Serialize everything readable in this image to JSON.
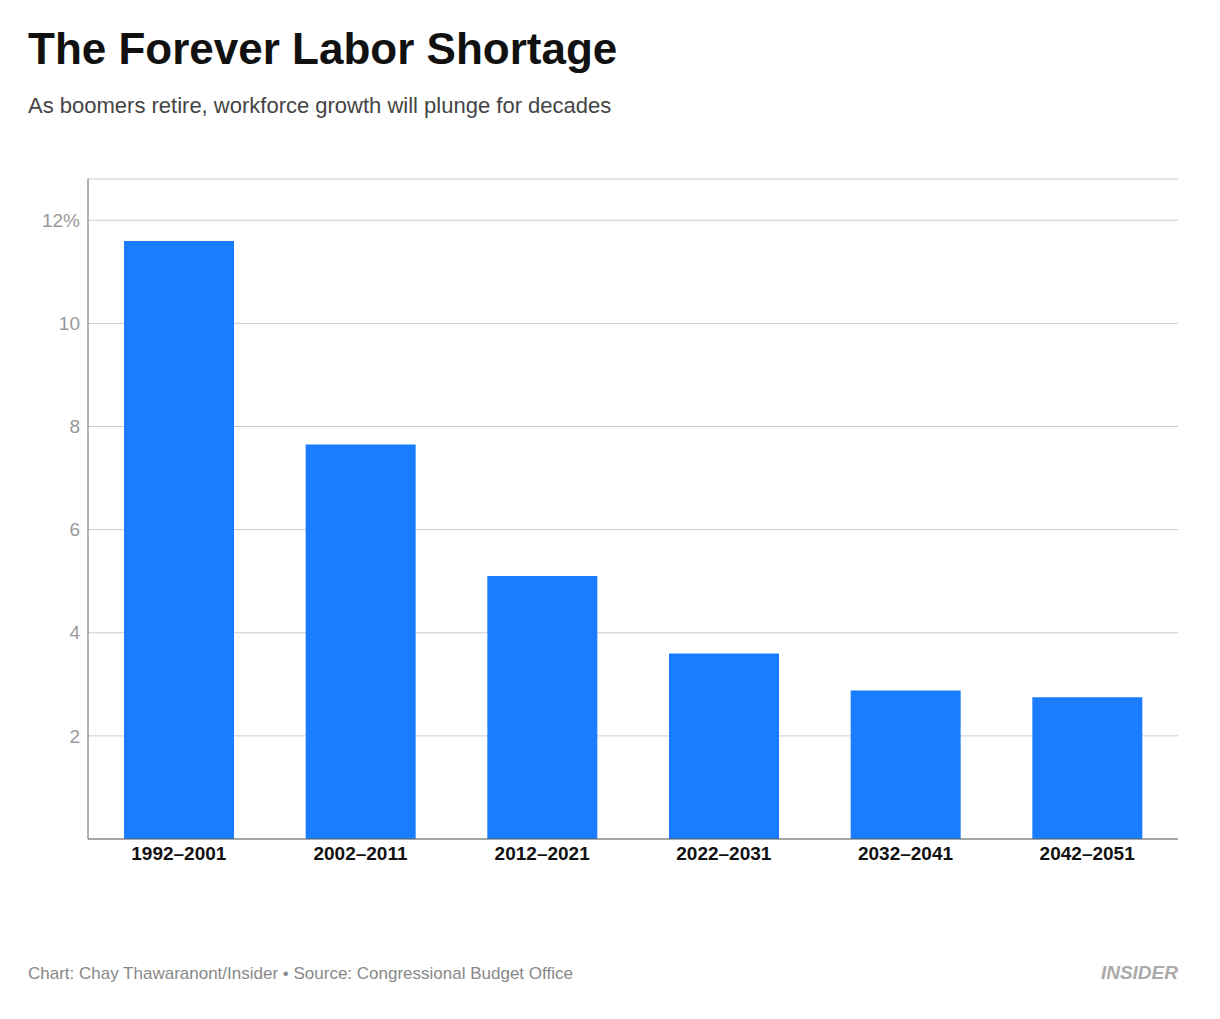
{
  "chart_data": {
    "type": "bar",
    "title": "The Forever Labor Shortage",
    "subtitle": "As boomers retire, workforce growth will plunge for decades",
    "categories": [
      "1992–2001",
      "2002–2011",
      "2012–2021",
      "2022–2031",
      "2032–2041",
      "2042–2051"
    ],
    "values": [
      11.6,
      7.65,
      5.1,
      3.6,
      2.88,
      2.75
    ],
    "color": "#1a7dff",
    "ylim": [
      0,
      12.8
    ],
    "yticks": [
      {
        "value": 0,
        "label": null
      },
      2,
      4,
      6,
      8,
      10,
      {
        "value": 12,
        "label": "12%"
      }
    ],
    "grid": true,
    "annotations": [
      "Chart: Chay Thawaranont/Insider • Source: Congressional Budget Office",
      "INSIDER"
    ]
  }
}
